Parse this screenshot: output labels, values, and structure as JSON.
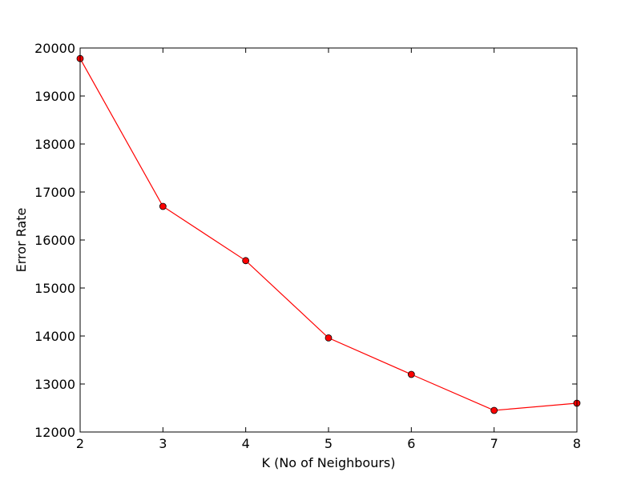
{
  "chart_data": {
    "type": "line",
    "title": "",
    "xlabel": "K (No of Neighbours)",
    "ylabel": "Error Rate",
    "x": [
      2,
      3,
      4,
      5,
      6,
      7,
      8
    ],
    "series": [
      {
        "values": [
          19780,
          16700,
          15570,
          13960,
          13200,
          12450,
          12600
        ],
        "color": "#ff0000",
        "marker": "circle"
      }
    ],
    "xlim": [
      2,
      8
    ],
    "ylim": [
      12000,
      20000
    ],
    "xticks": [
      2,
      3,
      4,
      5,
      6,
      7,
      8
    ],
    "yticks": [
      12000,
      13000,
      14000,
      15000,
      16000,
      17000,
      18000,
      19000,
      20000
    ],
    "grid": false,
    "legend": "none"
  }
}
